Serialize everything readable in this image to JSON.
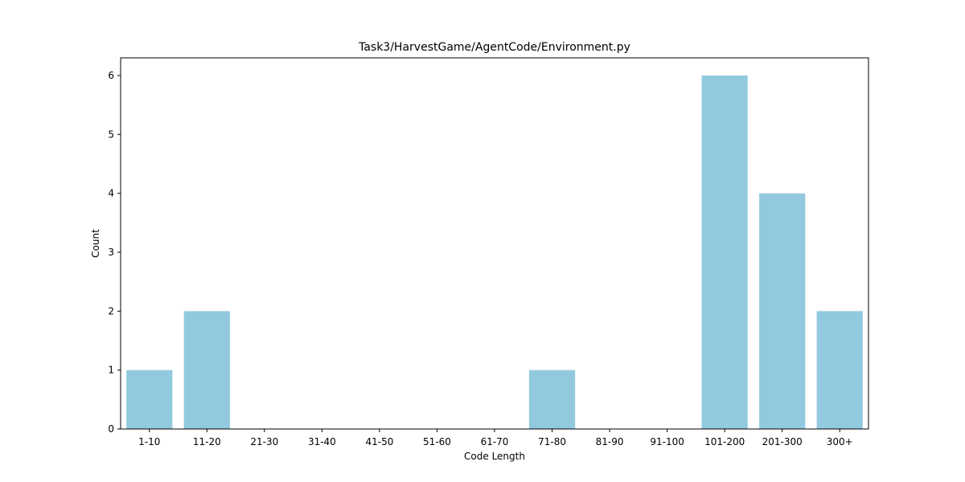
{
  "chart_data": {
    "type": "bar",
    "title": "Task3/HarvestGame/AgentCode/Environment.py",
    "xlabel": "Code Length",
    "ylabel": "Count",
    "categories": [
      "1-10",
      "11-20",
      "21-30",
      "31-40",
      "41-50",
      "51-60",
      "61-70",
      "71-80",
      "81-90",
      "91-100",
      "101-200",
      "201-300",
      "300+"
    ],
    "values": [
      1,
      2,
      0,
      0,
      0,
      0,
      0,
      1,
      0,
      0,
      6,
      4,
      2
    ],
    "ylim": [
      0,
      6.3
    ],
    "yticks": [
      0,
      1,
      2,
      3,
      4,
      5,
      6
    ],
    "grid": false,
    "legend": "none",
    "bar_color": "#92C9DF"
  }
}
